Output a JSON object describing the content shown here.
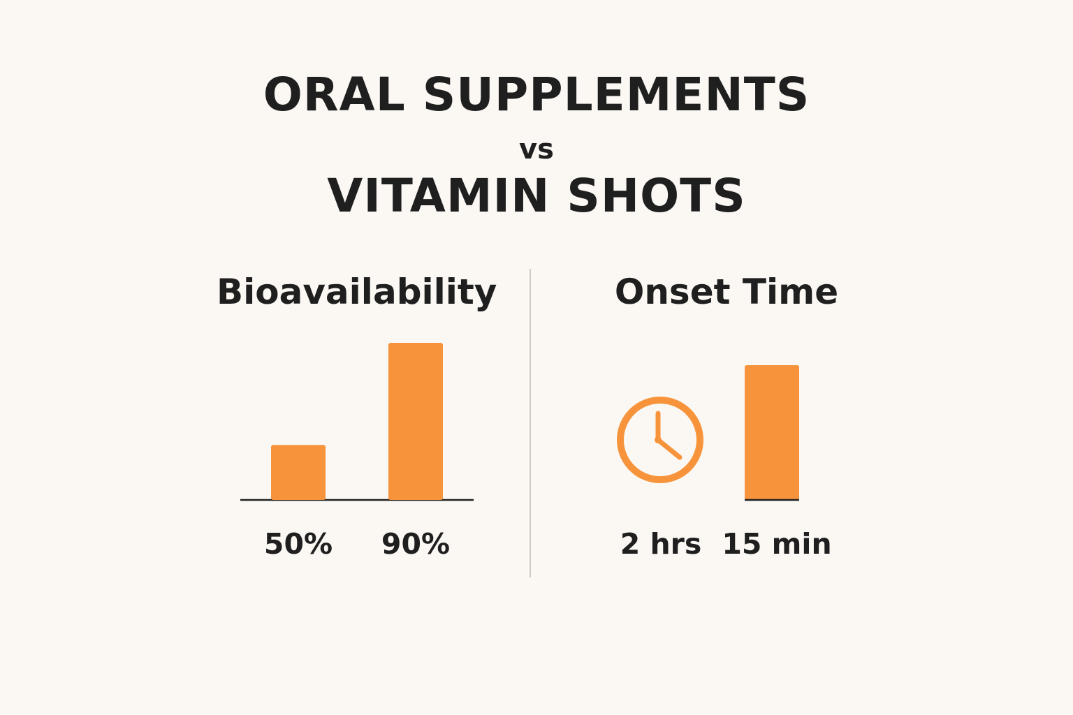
{
  "title": {
    "line1": "ORAL SUPPLEMENTS",
    "vs": "vs",
    "line2": "VITAMIN SHOTS"
  },
  "colors": {
    "accent": "#f7943b",
    "text": "#1f1f1f",
    "background": "#fbf8f4"
  },
  "chart_data": [
    {
      "type": "bar",
      "title": "Bioavailability",
      "categories": [
        "50%",
        "90%"
      ],
      "values": [
        50,
        90
      ],
      "unit": "%",
      "ylim": [
        0,
        100
      ],
      "grid": false
    },
    {
      "type": "bar",
      "title": "Onset Time",
      "categories": [
        "2 hrs",
        "15 min"
      ],
      "values": [
        120,
        15
      ],
      "unit": "min",
      "icons": [
        "clock-icon",
        null
      ],
      "grid": false
    }
  ]
}
